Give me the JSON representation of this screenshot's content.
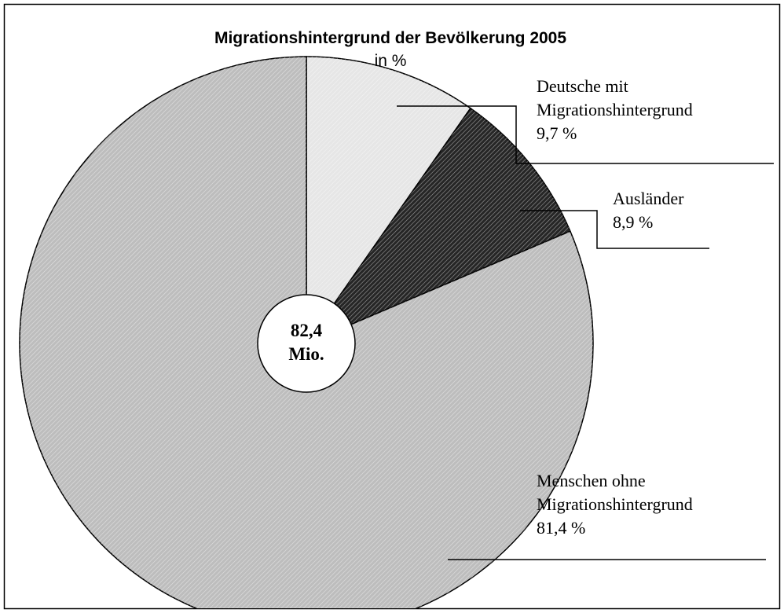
{
  "chart_data": {
    "type": "pie",
    "title": "Migrationshintergrund der Bevölkerung 2005",
    "subtitle": "in %",
    "categories": [
      "Deutsche mit Migrationshintergrund",
      "Ausländer",
      "Menschen ohne Migrationshintergrund"
    ],
    "values": [
      9.7,
      8.9,
      81.4
    ],
    "value_labels": [
      "9,7 %",
      "8,9 %",
      "81,4 %"
    ],
    "colors": [
      "#e6e6e6",
      "#262626",
      "#bdbdbd"
    ],
    "annotation": [
      "82,4",
      "Mio."
    ]
  }
}
